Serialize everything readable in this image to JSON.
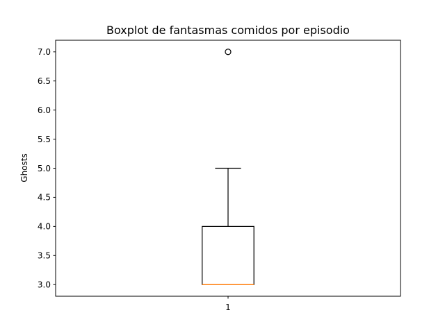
{
  "chart_data": {
    "type": "boxplot",
    "title": "Boxplot de fantasmas comidos por episodio",
    "xlabel": "",
    "ylabel": "Ghosts",
    "categories": [
      "1"
    ],
    "ylim": [
      2.8,
      7.2
    ],
    "yticks": [
      "3.0",
      "3.5",
      "4.0",
      "4.5",
      "5.0",
      "5.5",
      "6.0",
      "6.5",
      "7.0"
    ],
    "grid": false,
    "boxes": [
      {
        "category": "1",
        "whisker_low": 3.0,
        "q1": 3.0,
        "median": 3.0,
        "q3": 4.0,
        "whisker_high": 5.0,
        "outliers": [
          7.0
        ]
      }
    ],
    "colors": {
      "box": "#000000",
      "median": "#ff7f0e",
      "outlier_edge": "#000000"
    }
  }
}
